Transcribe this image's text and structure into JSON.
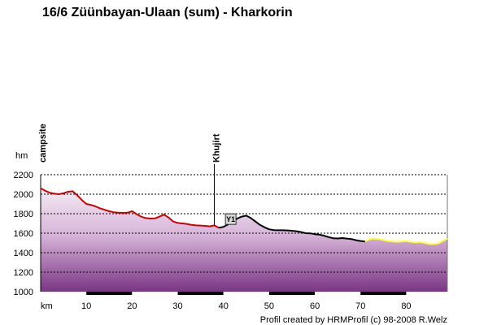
{
  "chart_data": {
    "type": "area",
    "title": "16/6 Züünbayan-Ulaan (sum) - Kharkorin",
    "ylabel": "hm",
    "xlabel": "km",
    "credit": "Profil created by HRMProfil (c) 98-2008 R.Welz",
    "xlim": [
      0,
      89
    ],
    "ylim": [
      1000,
      2200
    ],
    "x_ticks": [
      10,
      20,
      30,
      40,
      50,
      60,
      70,
      80
    ],
    "y_ticks": [
      1000,
      1200,
      1400,
      1600,
      1800,
      2000,
      2200
    ],
    "grid": "horizontal dashed",
    "waypoints": [
      {
        "label": "campsite",
        "km": 0
      },
      {
        "label": "Khujirt",
        "km": 38
      }
    ],
    "icons": [
      {
        "name": "restaurant-icon",
        "glyph": "Y1",
        "km": 41.5,
        "elevation": 1740
      }
    ],
    "colors": {
      "red_segment": "#cc0000",
      "black_segment": "#000000",
      "yellow_segment": "#ffff33",
      "fill_top": "#f3eaf4",
      "fill_bottom": "#7a3583"
    },
    "series": [
      {
        "color": "red",
        "x": [
          0,
          1,
          2,
          3,
          4,
          5,
          6,
          7,
          8,
          9,
          10,
          11,
          12,
          13,
          14,
          15,
          16,
          17,
          18,
          19,
          20,
          21,
          22,
          23,
          24,
          25,
          26,
          27,
          28,
          29,
          30,
          31,
          32,
          33,
          34,
          35,
          36,
          37,
          38,
          39
        ],
        "y": [
          2060,
          2035,
          2015,
          2005,
          2000,
          2010,
          2025,
          2030,
          1990,
          1940,
          1900,
          1890,
          1875,
          1855,
          1840,
          1825,
          1815,
          1810,
          1808,
          1810,
          1825,
          1795,
          1770,
          1755,
          1750,
          1752,
          1770,
          1790,
          1760,
          1720,
          1705,
          1700,
          1695,
          1685,
          1680,
          1678,
          1675,
          1670,
          1680,
          1655
        ]
      },
      {
        "color": "black",
        "x": [
          39,
          40,
          41,
          42,
          43,
          44,
          45,
          46,
          47,
          48,
          49,
          50,
          51,
          52,
          53,
          54,
          55,
          56,
          57,
          58,
          59,
          60,
          61,
          62,
          63,
          64,
          65,
          66,
          67,
          68,
          69,
          70,
          71
        ],
        "y": [
          1655,
          1665,
          1690,
          1720,
          1750,
          1770,
          1780,
          1755,
          1720,
          1685,
          1660,
          1640,
          1632,
          1630,
          1630,
          1628,
          1625,
          1620,
          1612,
          1600,
          1598,
          1590,
          1585,
          1575,
          1560,
          1548,
          1546,
          1550,
          1545,
          1540,
          1528,
          1520,
          1515
        ]
      },
      {
        "color": "yellow",
        "x": [
          71,
          72,
          73,
          74,
          75,
          76,
          77,
          78,
          79,
          80,
          81,
          82,
          83,
          84,
          85,
          86,
          87,
          88,
          89
        ],
        "y": [
          1515,
          1538,
          1545,
          1540,
          1530,
          1520,
          1515,
          1512,
          1515,
          1518,
          1512,
          1505,
          1510,
          1500,
          1490,
          1488,
          1495,
          1520,
          1545
        ]
      }
    ]
  }
}
